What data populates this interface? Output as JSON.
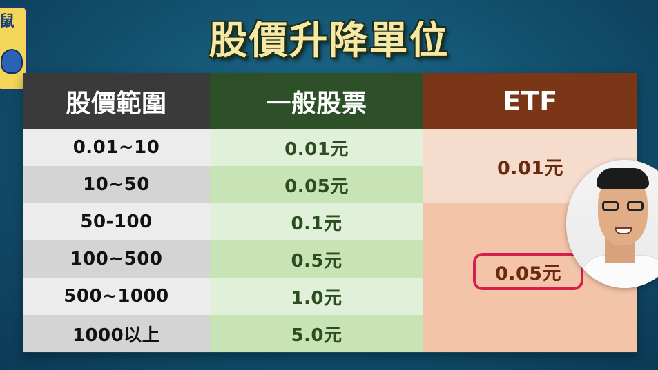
{
  "title": "股價升降單位",
  "logo": {
    "text": "鼠"
  },
  "table": {
    "headers": [
      "股價範圍",
      "一般股票",
      "ETF"
    ],
    "rows": [
      {
        "range": "0.01~10",
        "stock": "0.01元"
      },
      {
        "range": "10~50",
        "stock": "0.05元"
      },
      {
        "range": "50-100",
        "stock": "0.1元"
      },
      {
        "range": "100~500",
        "stock": "0.5元"
      },
      {
        "range": "500~1000",
        "stock": "1.0元"
      },
      {
        "range": "1000以上",
        "stock": "5.0元"
      }
    ],
    "etf": {
      "group1": "0.01元",
      "group2": "0.05元"
    }
  },
  "colors": {
    "header_range": "#3a3a3a",
    "header_stock": "#2e5028",
    "header_etf": "#7a3617",
    "highlight_outline": "#d3204f"
  }
}
